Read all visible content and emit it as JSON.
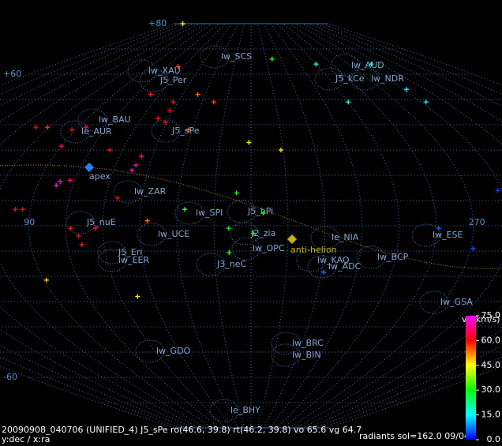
{
  "map": {
    "projection": "ra-dec",
    "dec_ticks": [
      {
        "value": 80,
        "label": "+80"
      },
      {
        "value": 60,
        "label": "+60"
      },
      {
        "value": -60,
        "label": "-60"
      }
    ],
    "ra_ticks": [
      90,
      270
    ],
    "markers": [
      {
        "label": "apex"
      },
      {
        "label": "anti-helion"
      }
    ],
    "showers": [
      "lw_SCS",
      "lw_AUD",
      "J5_kCe",
      "lw_NDR",
      "lw_XAU",
      "J5_Per",
      "lw_BAU",
      "le_AUR",
      "J5_sPe",
      "lw_ZAR",
      "lw_SPI",
      "J5_bPi",
      "J2_zia",
      "lw_UCE",
      "J5_nuE",
      "J5_Eri",
      "lw_EER",
      "lw_OPC",
      "J3_neC",
      "le_NIA",
      "lw_ESE",
      "lw_BCP",
      "lw_KAQ",
      "lw_ADC",
      "lw_GSA",
      "lw_GDO",
      "lw_BRC",
      "lw_BIN",
      "le_BHY"
    ],
    "points": [
      {
        "ra": 99,
        "dec": 17.5,
        "vg": 70
      },
      {
        "ra": 98,
        "dec": 16,
        "vg": 72
      },
      {
        "ra": 103,
        "dec": 18,
        "vg": 68
      },
      {
        "ra": 129,
        "dec": 24,
        "vg": 70
      },
      {
        "ra": 130,
        "dec": 27.5,
        "vg": 66
      },
      {
        "ra": 128,
        "dec": 22,
        "vg": 73
      },
      {
        "ra": 84,
        "dec": 6.5,
        "vg": 62
      },
      {
        "ra": 87,
        "dec": 6.5,
        "vg": 60
      },
      {
        "ra": 107,
        "dec": -1,
        "vg": 58
      },
      {
        "ra": 110,
        "dec": -4,
        "vg": 61
      },
      {
        "ra": 117,
        "dec": -1,
        "vg": 63
      },
      {
        "ra": 111,
        "dec": -7.5,
        "vg": 59
      },
      {
        "ra": 114,
        "dec": 30,
        "vg": 62
      },
      {
        "ra": 125,
        "dec": 11,
        "vg": 60
      },
      {
        "ra": 129,
        "dec": 42.5,
        "vg": 61
      },
      {
        "ra": 134,
        "dec": 41,
        "vg": 63
      },
      {
        "ra": 133,
        "dec": 45.6,
        "vg": 60
      },
      {
        "ra": 132,
        "dec": 49,
        "vg": 62
      },
      {
        "ra": 114,
        "dec": 52,
        "vg": 58
      },
      {
        "ra": 94,
        "dec": 39,
        "vg": 64
      },
      {
        "ra": 88,
        "dec": 38,
        "vg": 62
      },
      {
        "ra": 68,
        "dec": 39,
        "vg": 60
      },
      {
        "ra": 90,
        "dec": 31.5,
        "vg": 65
      },
      {
        "ra": 115,
        "dec": 63,
        "vg": 55
      },
      {
        "ra": 145,
        "dec": 52,
        "vg": 54
      },
      {
        "ra": 157,
        "dec": 49,
        "vg": 56
      },
      {
        "ra": 138,
        "dec": 2,
        "vg": 53
      },
      {
        "ra": 148,
        "dec": 38,
        "vg": 55
      },
      {
        "ra": 74,
        "dec": 39,
        "vg": 57
      },
      {
        "ra": 179,
        "dec": 33,
        "vg": 45
      },
      {
        "ra": 21,
        "dec": 80,
        "vg": 44
      },
      {
        "ra": 91,
        "dec": -21.5,
        "vg": 48
      },
      {
        "ra": 128,
        "dec": -28,
        "vg": 46
      },
      {
        "ra": 194,
        "dec": 30,
        "vg": 47
      },
      {
        "ra": 201,
        "dec": 66,
        "vg": 32
      },
      {
        "ra": 174,
        "dec": 13,
        "vg": 30
      },
      {
        "ra": 171,
        "dec": -1,
        "vg": 28
      },
      {
        "ra": 181,
        "dec": -3,
        "vg": 31
      },
      {
        "ra": 171,
        "dec": -10.6,
        "vg": 33
      },
      {
        "ra": 185,
        "dec": 5,
        "vg": 29
      },
      {
        "ra": 153,
        "dec": 6.5,
        "vg": 34
      },
      {
        "ra": 287,
        "dec": 54,
        "vg": 16
      },
      {
        "ra": 288,
        "dec": 49,
        "vg": 14
      },
      {
        "ra": 240,
        "dec": 64,
        "vg": 17
      },
      {
        "ra": 291,
        "dec": 64,
        "vg": 15
      },
      {
        "ra": 240,
        "dec": 49,
        "vg": 18
      },
      {
        "ra": 283,
        "dec": 14,
        "vg": 4
      },
      {
        "ra": 256,
        "dec": -1,
        "vg": 6
      },
      {
        "ra": 271,
        "dec": -9,
        "vg": 5
      },
      {
        "ra": 211,
        "dec": -18.4,
        "vg": 7
      }
    ]
  },
  "colorbar": {
    "title": "vg(km/s)",
    "lim": [
      0,
      75
    ],
    "ticks": [
      {
        "value": 75,
        "label": "75.0"
      },
      {
        "value": 60,
        "label": "60.0"
      },
      {
        "value": 45,
        "label": "45.0"
      },
      {
        "value": 30,
        "label": "30.0"
      },
      {
        "value": 15,
        "label": "15.0"
      },
      {
        "value": 0,
        "label": "0.0"
      }
    ]
  },
  "footer": {
    "info": "20090908_040706 (UNIFIED_4) J5_sPe ro(46.6, 39.8) rt(46.2, 39.8) vo 65.6 vg 64.7",
    "axes": "y:dec / x:ra",
    "summary": "radiants sol=162.0 09/04"
  }
}
